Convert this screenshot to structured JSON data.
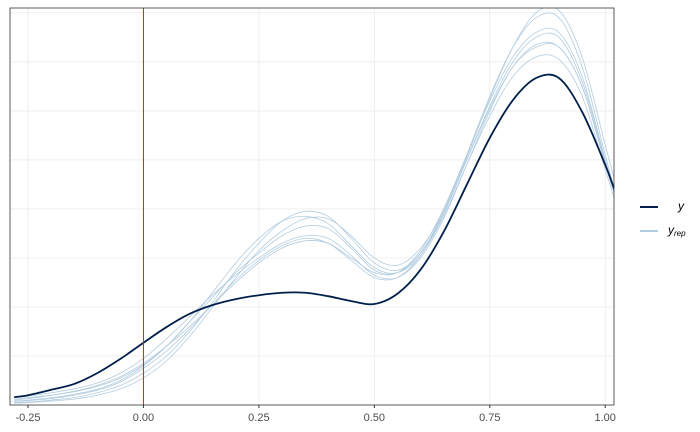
{
  "chart_data": {
    "type": "density-overlay",
    "x": [
      -0.28,
      -0.25,
      -0.2,
      -0.15,
      -0.1,
      -0.05,
      0,
      0.05,
      0.1,
      0.15,
      0.2,
      0.25,
      0.3,
      0.35,
      0.4,
      0.45,
      0.5,
      0.55,
      0.6,
      0.65,
      0.7,
      0.75,
      0.8,
      0.85,
      0.9,
      0.95,
      1.0,
      1.02
    ],
    "series": [
      {
        "name": "y",
        "color": "#011f4b",
        "values": [
          0.16,
          0.2,
          0.31,
          0.43,
          0.65,
          0.94,
          1.27,
          1.59,
          1.86,
          2.04,
          2.16,
          2.24,
          2.29,
          2.29,
          2.22,
          2.12,
          2.06,
          2.27,
          2.76,
          3.53,
          4.49,
          5.45,
          6.22,
          6.67,
          6.67,
          5.98,
          4.9,
          4.39
        ]
      }
    ],
    "replicates": {
      "name": "y",
      "subscript": "rep",
      "color": "#b3cde0",
      "values": [
        [
          0.08,
          0.1,
          0.15,
          0.22,
          0.32,
          0.5,
          0.8,
          1.2,
          1.7,
          2.2,
          2.7,
          3.1,
          3.45,
          3.65,
          3.6,
          3.2,
          2.75,
          2.7,
          3.1,
          3.9,
          5.0,
          6.1,
          7.0,
          7.5,
          7.5,
          6.6,
          5.0,
          4.4
        ],
        [
          0.15,
          0.18,
          0.25,
          0.33,
          0.45,
          0.65,
          0.95,
          1.35,
          1.8,
          2.25,
          2.65,
          3.0,
          3.3,
          3.45,
          3.4,
          3.05,
          2.65,
          2.6,
          3.0,
          3.8,
          4.9,
          6.0,
          6.9,
          7.3,
          7.3,
          6.5,
          4.9,
          4.3
        ],
        [
          0.05,
          0.06,
          0.1,
          0.15,
          0.25,
          0.4,
          0.65,
          1.0,
          1.5,
          2.1,
          2.75,
          3.3,
          3.75,
          3.95,
          3.85,
          3.4,
          2.9,
          2.75,
          3.1,
          3.95,
          5.1,
          6.3,
          7.3,
          7.9,
          7.9,
          6.9,
          5.1,
          4.4
        ],
        [
          0.1,
          0.13,
          0.2,
          0.28,
          0.4,
          0.58,
          0.85,
          1.2,
          1.6,
          2.05,
          2.5,
          2.9,
          3.2,
          3.35,
          3.3,
          3.0,
          2.7,
          2.7,
          3.15,
          4.0,
          5.1,
          6.2,
          7.1,
          7.6,
          7.6,
          6.7,
          5.0,
          4.3
        ],
        [
          0.04,
          0.05,
          0.08,
          0.12,
          0.2,
          0.33,
          0.55,
          0.9,
          1.4,
          2.0,
          2.6,
          3.15,
          3.55,
          3.8,
          3.8,
          3.45,
          3.0,
          2.85,
          3.2,
          3.95,
          5.0,
          6.05,
          6.9,
          7.35,
          7.3,
          6.5,
          4.95,
          4.35
        ],
        [
          0.12,
          0.15,
          0.2,
          0.27,
          0.38,
          0.55,
          0.82,
          1.2,
          1.7,
          2.3,
          2.9,
          3.4,
          3.75,
          3.85,
          3.7,
          3.25,
          2.8,
          2.7,
          3.05,
          3.85,
          4.9,
          5.9,
          6.7,
          7.1,
          7.05,
          6.3,
          4.8,
          4.2
        ],
        [
          0.07,
          0.09,
          0.13,
          0.2,
          0.3,
          0.47,
          0.75,
          1.1,
          1.55,
          2.05,
          2.55,
          2.95,
          3.25,
          3.4,
          3.3,
          2.95,
          2.6,
          2.6,
          3.05,
          3.9,
          5.05,
          6.25,
          7.3,
          8.0,
          8.05,
          7.1,
          5.3,
          4.6
        ]
      ]
    },
    "xlim": [
      -0.289,
      1.019
    ],
    "xticks": [
      -0.25,
      {
        "value": 0,
        "label": "0.00"
      },
      0.25,
      {
        "value": 0.5,
        "label": "0.50"
      },
      0.75,
      {
        "value": 1,
        "label": "1.00"
      }
    ],
    "ylim": [
      0,
      8.1
    ],
    "yticks": [
      1,
      2,
      3,
      4,
      5,
      6,
      7,
      8
    ],
    "grid": true,
    "vline": {
      "value": 0,
      "color": "#e41a1c"
    },
    "legend": "right"
  }
}
